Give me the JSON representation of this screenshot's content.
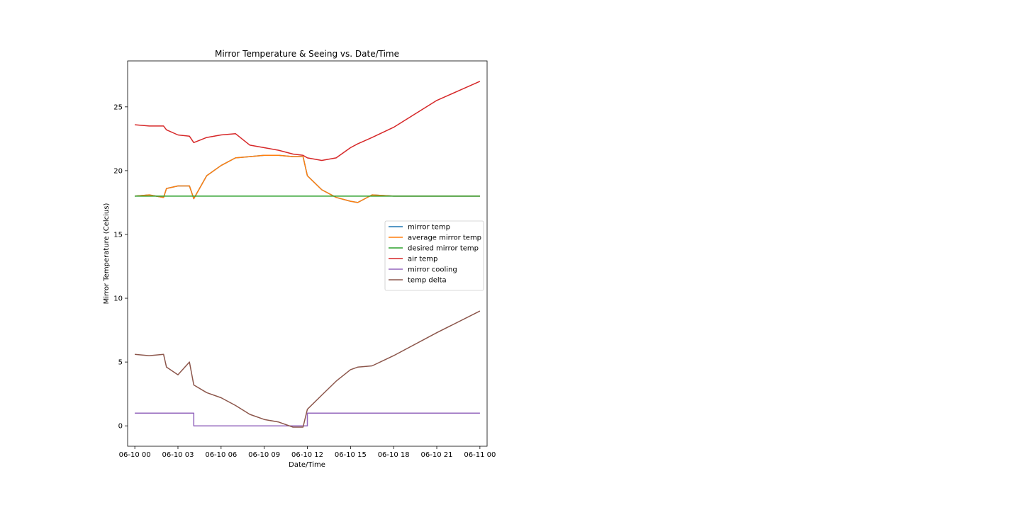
{
  "chart_data": {
    "type": "line",
    "title": "Mirror Temperature & Seeing vs. Date/Time",
    "xlabel": "Date/Time",
    "ylabel": "Mirror Temperature (Celcius)",
    "xlim": [
      "2023-06-09T23:30",
      "2023-06-11T00:30"
    ],
    "ylim": [
      -1.6,
      28.6
    ],
    "x_ticks": [
      "06-10 00",
      "06-10 03",
      "06-10 06",
      "06-10 09",
      "06-10 12",
      "06-10 15",
      "06-10 18",
      "06-10 21",
      "06-11 00"
    ],
    "y_ticks": [
      0,
      5,
      10,
      15,
      20,
      25
    ],
    "grid": false,
    "legend_position": "center-right",
    "x": [
      "2023-06-10T00:00",
      "2023-06-10T01:00",
      "2023-06-10T02:00",
      "2023-06-10T02:12",
      "2023-06-10T03:00",
      "2023-06-10T03:48",
      "2023-06-10T04:06",
      "2023-06-10T05:00",
      "2023-06-10T06:00",
      "2023-06-10T07:00",
      "2023-06-10T08:00",
      "2023-06-10T09:00",
      "2023-06-10T10:00",
      "2023-06-10T11:00",
      "2023-06-10T11:42",
      "2023-06-10T12:00",
      "2023-06-10T13:00",
      "2023-06-10T14:00",
      "2023-06-10T15:00",
      "2023-06-10T15:30",
      "2023-06-10T16:30",
      "2023-06-10T18:00",
      "2023-06-10T21:00",
      "2023-06-11T00:00"
    ],
    "series": [
      {
        "name": "mirror temp",
        "color": "#1f77b4",
        "values": [
          18.0,
          18.1,
          17.9,
          18.6,
          18.8,
          18.8,
          17.8,
          19.6,
          20.4,
          21.0,
          21.1,
          21.2,
          21.2,
          21.1,
          21.1,
          19.6,
          18.5,
          17.9,
          17.6,
          17.5,
          18.1,
          18.0,
          18.0,
          18.0
        ]
      },
      {
        "name": "average mirror temp",
        "color": "#ff7f0e",
        "values": [
          18.0,
          18.1,
          17.9,
          18.6,
          18.8,
          18.8,
          17.8,
          19.6,
          20.4,
          21.0,
          21.1,
          21.2,
          21.2,
          21.1,
          21.1,
          19.6,
          18.5,
          17.9,
          17.6,
          17.5,
          18.1,
          18.0,
          18.0,
          18.0
        ]
      },
      {
        "name": "desired mirror temp",
        "color": "#2ca02c",
        "values": [
          18.0,
          18.0,
          18.0,
          18.0,
          18.0,
          18.0,
          18.0,
          18.0,
          18.0,
          18.0,
          18.0,
          18.0,
          18.0,
          18.0,
          18.0,
          18.0,
          18.0,
          18.0,
          18.0,
          18.0,
          18.0,
          18.0,
          18.0,
          18.0
        ]
      },
      {
        "name": "air temp",
        "color": "#d62728",
        "values": [
          23.6,
          23.5,
          23.5,
          23.2,
          22.8,
          22.7,
          22.2,
          22.6,
          22.8,
          22.9,
          22.0,
          21.8,
          21.6,
          21.3,
          21.2,
          21.0,
          20.8,
          21.0,
          21.8,
          22.1,
          22.6,
          23.4,
          25.5,
          27.0
        ]
      },
      {
        "name": "mirror cooling",
        "color": "#9467bd",
        "values": [
          1,
          1,
          1,
          1,
          1,
          1,
          0,
          0,
          0,
          0,
          0,
          0,
          0,
          0,
          0,
          1,
          1,
          1,
          1,
          1,
          1,
          1,
          1,
          1
        ]
      },
      {
        "name": "temp delta",
        "color": "#8c564b",
        "values": [
          5.6,
          5.5,
          5.6,
          4.6,
          4.0,
          5.0,
          3.2,
          2.6,
          2.2,
          1.6,
          0.9,
          0.5,
          0.3,
          -0.1,
          -0.1,
          1.3,
          2.4,
          3.5,
          4.4,
          4.6,
          4.7,
          5.5,
          7.3,
          9.0
        ]
      }
    ]
  }
}
